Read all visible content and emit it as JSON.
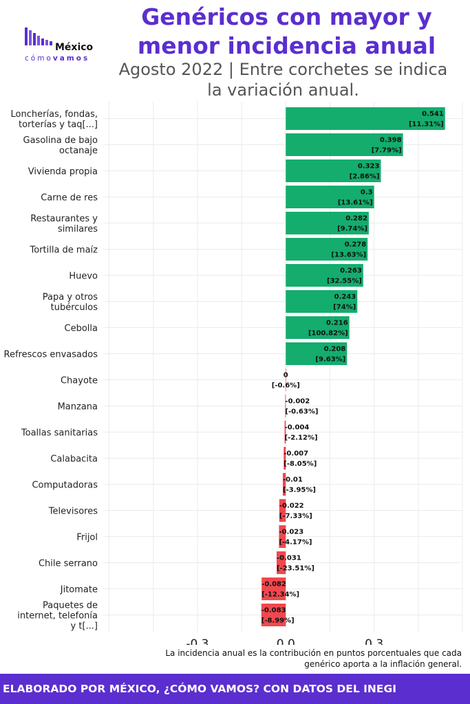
{
  "header": {
    "title_line1": "Genéricos con mayor y",
    "title_line2": "menor incidencia anual",
    "subtitle_line1": "Agosto 2022 | Entre corchetes se indica",
    "subtitle_line2": "la variación anual."
  },
  "logo": {
    "name": "México",
    "tag_light": "cómo",
    "tag_bold": "vamos"
  },
  "footnote": {
    "line1": "La incidencia anual es la contribución en puntos porcentuales que cada",
    "line2": "genérico aporta a la inflación general."
  },
  "footer": {
    "text": "ELABORADO POR MÉXICO, ¿CÓMO VAMOS? CON DATOS DEL INEGI"
  },
  "colors": {
    "positive": "#14AD6E",
    "negative": "#F0484E",
    "brand": "#5B2ECF"
  },
  "chart_data": {
    "type": "bar",
    "orientation": "horizontal",
    "categories": [
      "Loncherías, fondas, torterías y taq[...]",
      "Gasolina de bajo octanaje",
      "Vivienda propia",
      "Carne de res",
      "Restaurantes y similares",
      "Tortilla de maíz",
      "Huevo",
      "Papa y otros tubérculos",
      "Cebolla",
      "Refrescos envasados",
      "Chayote",
      "Manzana",
      "Toallas sanitarias",
      "Calabacita",
      "Computadoras",
      "Televisores",
      "Frijol",
      "Chile serrano",
      "Jitomate",
      "Paquetes de internet, telefonía y t[...]"
    ],
    "category_lines": [
      [
        "Loncherías, fondas,",
        "torterías y taq[...]"
      ],
      [
        "Gasolina de bajo",
        "octanaje"
      ],
      [
        "Vivienda propia"
      ],
      [
        "Carne de res"
      ],
      [
        "Restaurantes y",
        "similares"
      ],
      [
        "Tortilla de maíz"
      ],
      [
        "Huevo"
      ],
      [
        "Papa y otros",
        "tubérculos"
      ],
      [
        "Cebolla"
      ],
      [
        "Refrescos envasados"
      ],
      [
        "Chayote"
      ],
      [
        "Manzana"
      ],
      [
        "Toallas sanitarias"
      ],
      [
        "Calabacita"
      ],
      [
        "Computadoras"
      ],
      [
        "Televisores"
      ],
      [
        "Frijol"
      ],
      [
        "Chile serrano"
      ],
      [
        "Jitomate"
      ],
      [
        "Paquetes de",
        "internet, telefonía",
        "y t[...]"
      ]
    ],
    "values": [
      0.541,
      0.398,
      0.323,
      0.3,
      0.282,
      0.278,
      0.263,
      0.243,
      0.216,
      0.208,
      0,
      -0.002,
      -0.004,
      -0.007,
      -0.01,
      -0.022,
      -0.023,
      -0.031,
      -0.082,
      -0.083
    ],
    "value_labels": [
      "0.541",
      "0.398",
      "0.323",
      "0.3",
      "0.282",
      "0.278",
      "0.263",
      "0.243",
      "0.216",
      "0.208",
      "0",
      "-0.002",
      "-0.004",
      "-0.007",
      "-0.01",
      "-0.022",
      "-0.023",
      "-0.031",
      "-0.082",
      "-0.083"
    ],
    "variation_labels": [
      "[11.31%]",
      "[7.79%]",
      "[2.86%]",
      "[13.61%]",
      "[9.74%]",
      "[13.63%]",
      "[32.55%]",
      "[74%]",
      "[100.82%]",
      "[9.63%]",
      "[-0.6%]",
      "[-0.63%]",
      "[-2.12%]",
      "[-8.05%]",
      "[-3.95%]",
      "[-7.33%]",
      "[-4.17%]",
      "[-23.51%]",
      "[-12.34%]",
      "[-8.99%]"
    ],
    "xlim": [
      -0.62,
      0.6
    ],
    "xticks": [
      -0.3,
      0.0,
      0.3
    ],
    "xtick_labels": [
      "-0.3",
      "0.0",
      "0.3"
    ],
    "grid": true
  }
}
